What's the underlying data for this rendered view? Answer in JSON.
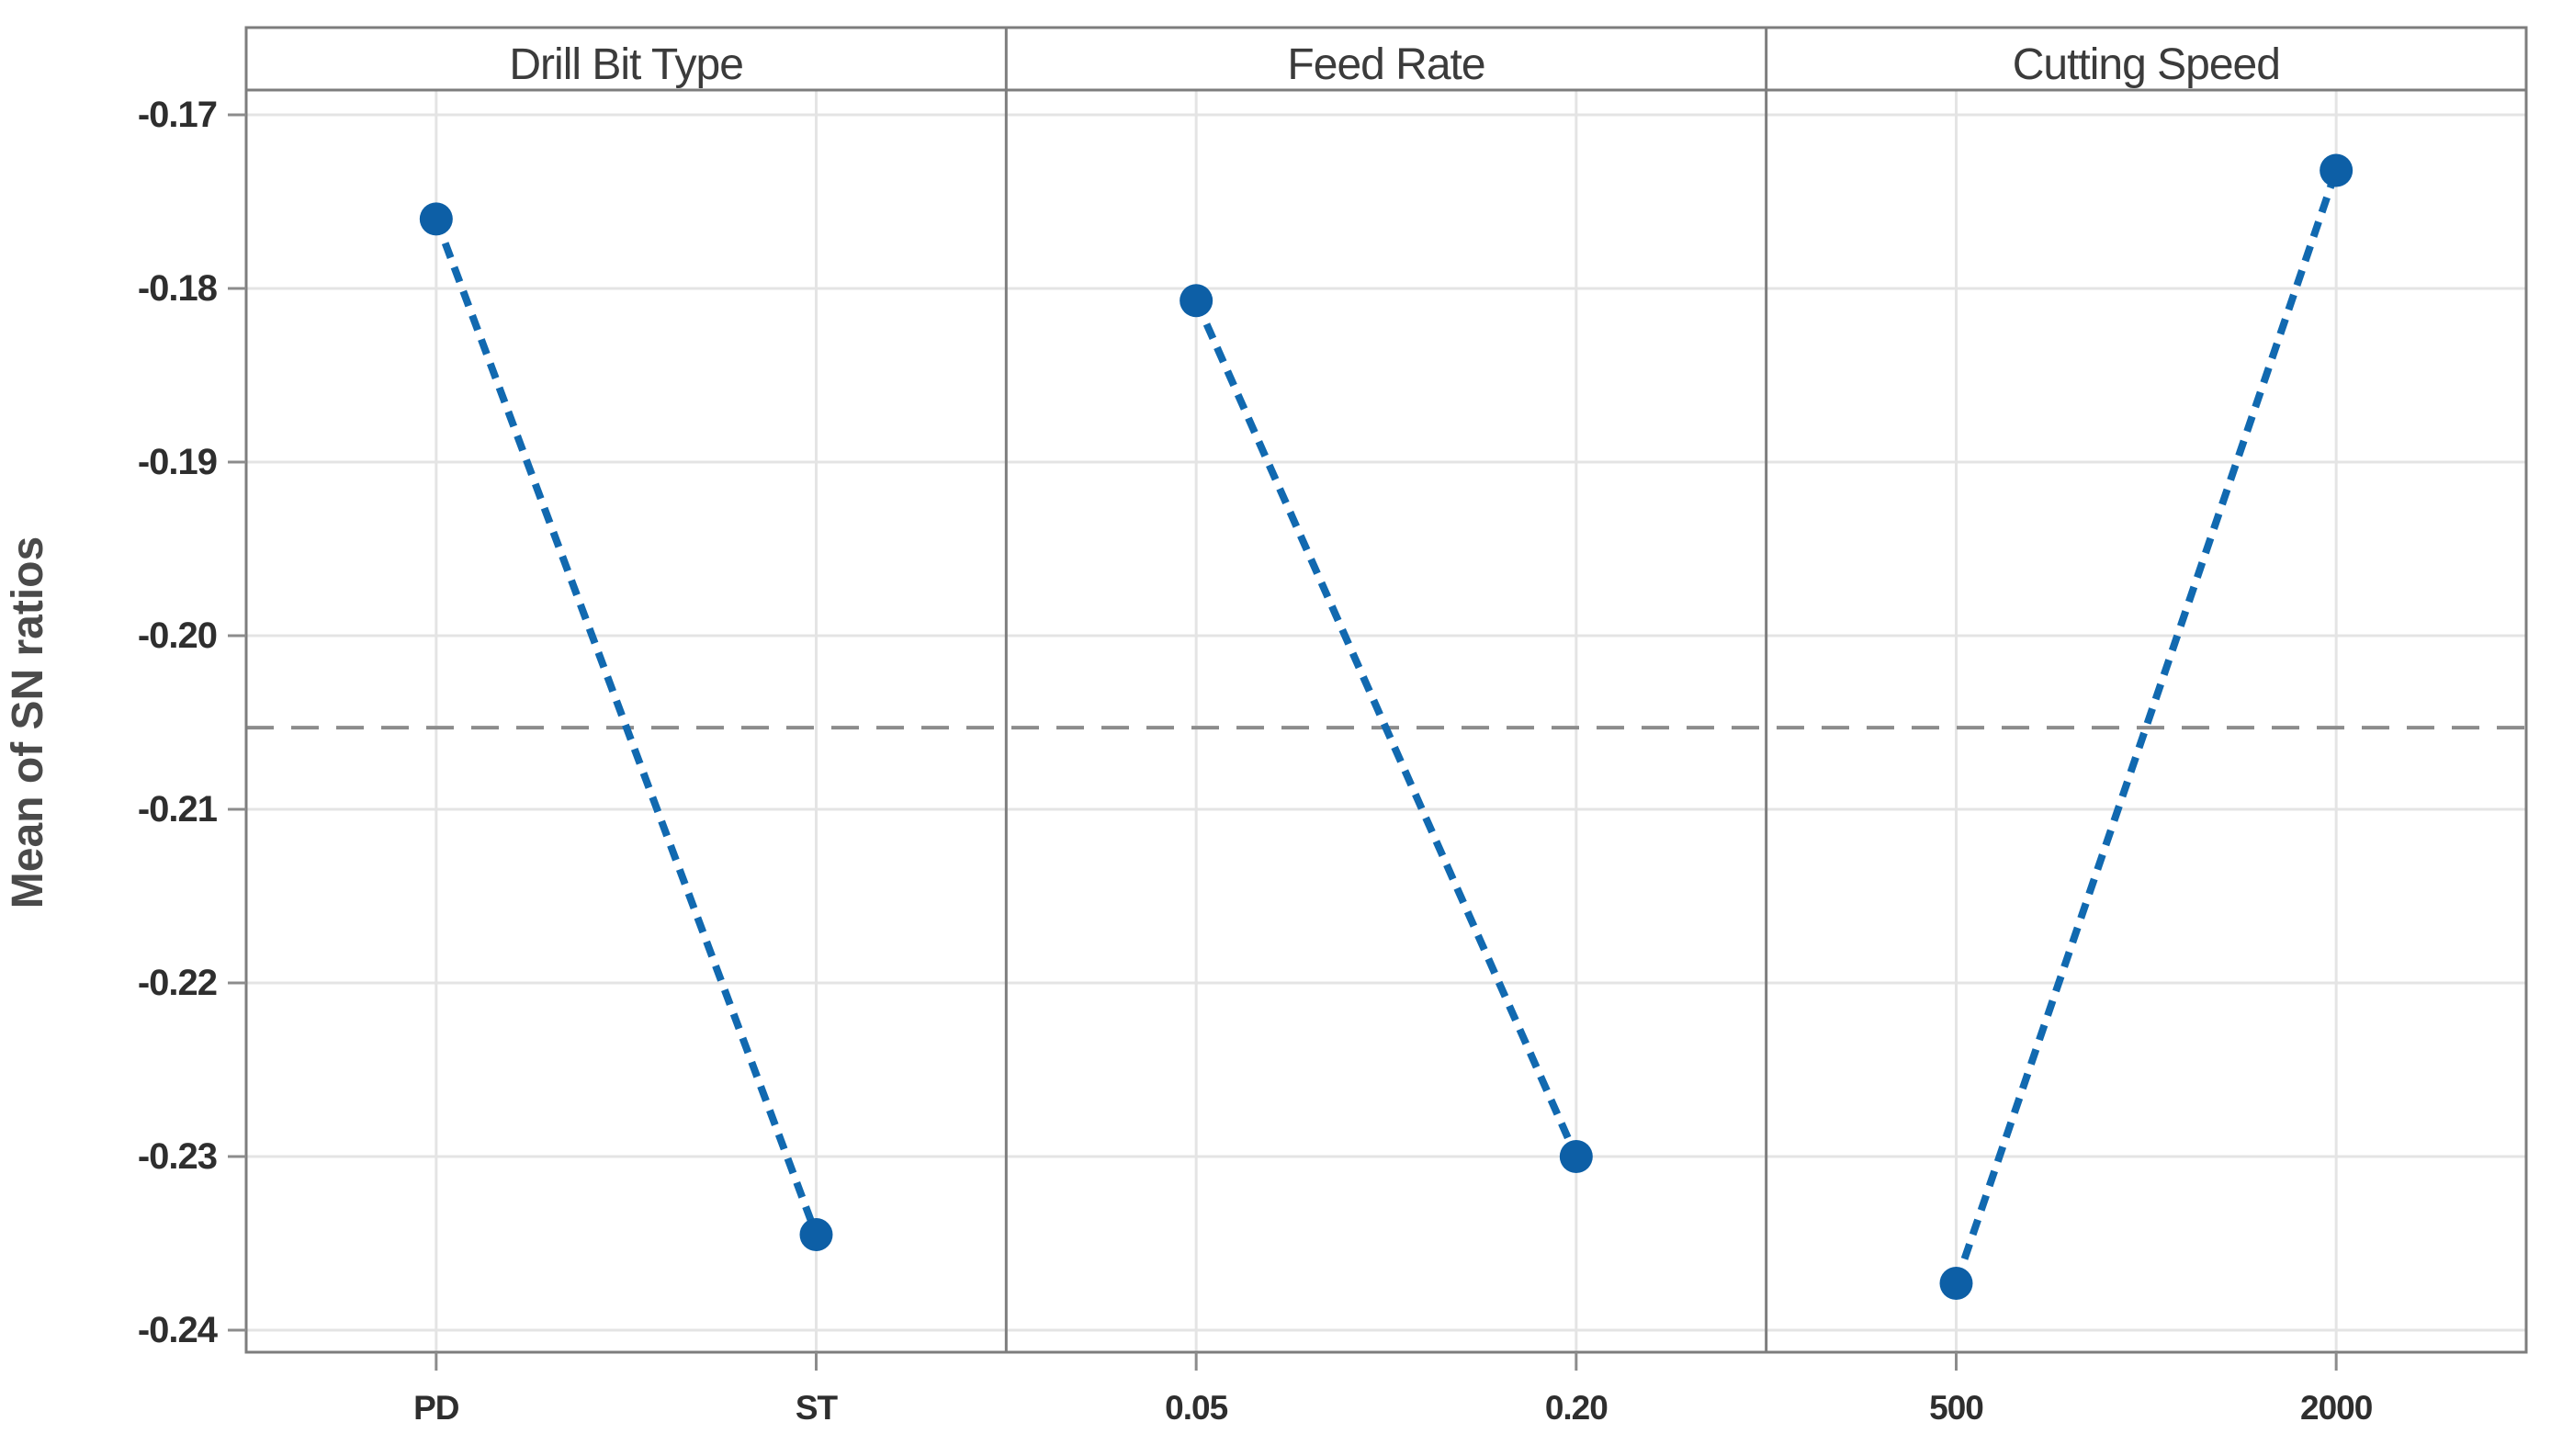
{
  "chart_data": {
    "type": "line",
    "title": "",
    "ylabel": "Mean of SN ratios",
    "ylim": [
      -0.24,
      -0.17
    ],
    "yticks": [
      -0.17,
      -0.18,
      -0.19,
      -0.2,
      -0.21,
      -0.22,
      -0.23,
      -0.24
    ],
    "ytick_labels": [
      "-0.17",
      "-0.18",
      "-0.19",
      "-0.20",
      "-0.21",
      "-0.22",
      "-0.23",
      "-0.24"
    ],
    "grid": true,
    "legend": "none",
    "reference_line": {
      "value": -0.2053,
      "style": "dashed"
    },
    "panels": [
      {
        "title": "Drill Bit Type",
        "categories": [
          "PD",
          "ST"
        ],
        "values": [
          -0.176,
          -0.2345
        ]
      },
      {
        "title": "Feed Rate",
        "categories": [
          "0.05",
          "0.20"
        ],
        "values": [
          -0.1807,
          -0.23
        ]
      },
      {
        "title": "Cutting Speed",
        "categories": [
          "500",
          "2000"
        ],
        "values": [
          -0.2373,
          -0.1732
        ]
      }
    ],
    "colors": {
      "series_line": "#1169b0",
      "marker": "#0d5fa6",
      "reference_line": "#8c8c8c",
      "grid_line": "#e4e4e4",
      "frame": "#7d7d7d",
      "tick": "#8c8c8c",
      "text": "#3b3b3b"
    }
  }
}
